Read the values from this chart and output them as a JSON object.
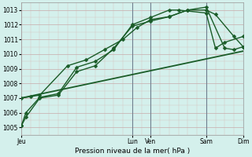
{
  "bg_color": "#d4f0ec",
  "grid_major_color": "#c0d8d4",
  "grid_minor_color": "#c8e4e0",
  "vline_color": "#708090",
  "line_color": "#1a5c28",
  "title": "Pression niveau de la mer( hPa )",
  "ylim": [
    1004.5,
    1013.5
  ],
  "yticks": [
    1005,
    1006,
    1007,
    1008,
    1009,
    1010,
    1011,
    1012,
    1013
  ],
  "xlim": [
    0,
    24
  ],
  "day_tick_positions": [
    0,
    12,
    14,
    20,
    24
  ],
  "day_labels": [
    "Jeu",
    "Lun",
    "Ven",
    "Sam",
    "Dim"
  ],
  "vline_positions": [
    12,
    14,
    20,
    24
  ],
  "n_x_grid": 24,
  "series1": {
    "x": [
      0,
      0.5,
      2,
      4,
      6,
      8,
      10,
      12,
      14,
      16,
      18,
      20,
      21,
      23,
      24
    ],
    "y": [
      1005.1,
      1005.7,
      1007.0,
      1007.2,
      1008.8,
      1009.2,
      1010.4,
      1011.9,
      1012.25,
      1012.55,
      1013.0,
      1013.0,
      1012.7,
      1011.2,
      1010.5
    ],
    "linewidth": 1.0,
    "markersize": 2.5
  },
  "series2": {
    "x": [
      0,
      0.5,
      2,
      4,
      6,
      8,
      10,
      12,
      14,
      16,
      17,
      20,
      21,
      22,
      24
    ],
    "y": [
      1005.1,
      1006.0,
      1007.05,
      1007.3,
      1009.1,
      1009.5,
      1010.3,
      1012.0,
      1012.5,
      1013.0,
      1013.0,
      1012.8,
      1010.4,
      1010.8,
      1011.2
    ],
    "linewidth": 1.0,
    "markersize": 2.5
  },
  "series3": {
    "x": [
      0,
      1,
      2,
      5,
      7,
      9,
      11,
      12.5,
      14,
      16,
      18,
      20,
      22,
      23,
      24
    ],
    "y": [
      1007.0,
      1007.1,
      1007.2,
      1009.2,
      1009.6,
      1010.3,
      1011.0,
      1011.8,
      1012.35,
      1012.55,
      1013.0,
      1013.2,
      1010.4,
      1010.3,
      1010.5
    ],
    "linewidth": 1.0,
    "markersize": 2.5
  },
  "series4": {
    "x": [
      0,
      24
    ],
    "y": [
      1007.0,
      1010.2
    ],
    "linewidth": 1.3,
    "markersize": 0
  },
  "figsize": [
    3.2,
    2.0
  ],
  "dpi": 100
}
